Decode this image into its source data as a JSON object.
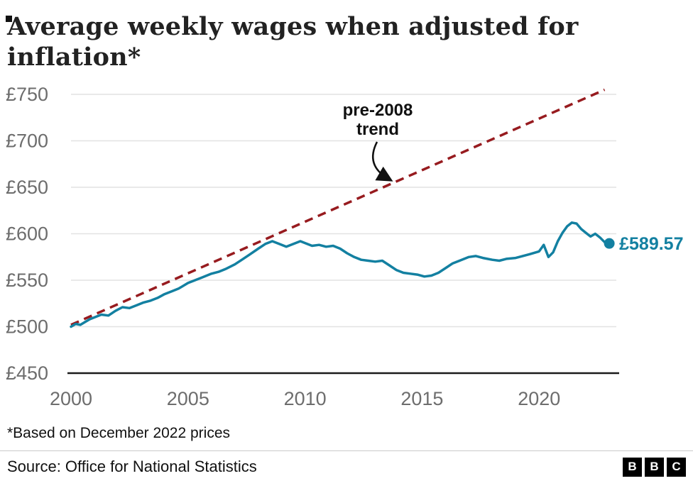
{
  "title": "Average weekly wages when adjusted for inflation*",
  "footnote": "*Based on December 2022 prices",
  "source": "Source: Office for National Statistics",
  "logo": [
    "B",
    "B",
    "C"
  ],
  "annotation": {
    "line1": "pre-2008",
    "line2": "trend"
  },
  "colors": {
    "series": "#1380A1",
    "trend": "#971b1f",
    "grid": "#e2e2e2",
    "axis": "#1a1a1a",
    "tick_text": "#6d6d6d",
    "annotation": "#111111"
  },
  "chart_data": {
    "type": "line",
    "title": "Average weekly wages when adjusted for inflation*",
    "xlabel": "",
    "ylabel": "",
    "x_range": [
      2000,
      2023.3
    ],
    "y_range": [
      450,
      750
    ],
    "yticks": [
      450,
      500,
      550,
      600,
      650,
      700,
      750
    ],
    "ytick_labels": [
      "£450",
      "£500",
      "£550",
      "£600",
      "£650",
      "£700",
      "£750"
    ],
    "xticks": [
      2000,
      2005,
      2010,
      2015,
      2020
    ],
    "xtick_labels": [
      "2000",
      "2005",
      "2010",
      "2015",
      "2020"
    ],
    "grid": true,
    "legend": false,
    "series": [
      {
        "name": "average-weekly-wages",
        "color": "#1380A1",
        "points": [
          [
            2000,
            500
          ],
          [
            2000.2,
            503
          ],
          [
            2000.4,
            502
          ],
          [
            2000.6,
            505
          ],
          [
            2000.8,
            508
          ],
          [
            2001,
            510
          ],
          [
            2001.3,
            513
          ],
          [
            2001.6,
            512
          ],
          [
            2001.9,
            517
          ],
          [
            2002.2,
            521
          ],
          [
            2002.5,
            520
          ],
          [
            2002.8,
            523
          ],
          [
            2003.1,
            526
          ],
          [
            2003.4,
            528
          ],
          [
            2003.7,
            531
          ],
          [
            2004,
            535
          ],
          [
            2004.3,
            538
          ],
          [
            2004.6,
            541
          ],
          [
            2005,
            547
          ],
          [
            2005.3,
            550
          ],
          [
            2005.6,
            553
          ],
          [
            2006,
            557
          ],
          [
            2006.3,
            559
          ],
          [
            2006.6,
            562
          ],
          [
            2007,
            567
          ],
          [
            2007.3,
            572
          ],
          [
            2007.6,
            577
          ],
          [
            2008,
            584
          ],
          [
            2008.3,
            589
          ],
          [
            2008.6,
            592
          ],
          [
            2008.9,
            589
          ],
          [
            2009.2,
            586
          ],
          [
            2009.5,
            589
          ],
          [
            2009.8,
            592
          ],
          [
            2010,
            590
          ],
          [
            2010.3,
            587
          ],
          [
            2010.6,
            588
          ],
          [
            2010.9,
            586
          ],
          [
            2011.2,
            587
          ],
          [
            2011.5,
            584
          ],
          [
            2011.8,
            579
          ],
          [
            2012.1,
            575
          ],
          [
            2012.4,
            572
          ],
          [
            2012.7,
            571
          ],
          [
            2013,
            570
          ],
          [
            2013.3,
            571
          ],
          [
            2013.6,
            566
          ],
          [
            2013.9,
            561
          ],
          [
            2014.2,
            558
          ],
          [
            2014.5,
            557
          ],
          [
            2014.8,
            556
          ],
          [
            2015.1,
            554
          ],
          [
            2015.4,
            555
          ],
          [
            2015.7,
            558
          ],
          [
            2016,
            563
          ],
          [
            2016.3,
            568
          ],
          [
            2016.6,
            571
          ],
          [
            2017,
            575
          ],
          [
            2017.3,
            576
          ],
          [
            2017.6,
            574
          ],
          [
            2018,
            572
          ],
          [
            2018.3,
            571
          ],
          [
            2018.6,
            573
          ],
          [
            2019,
            574
          ],
          [
            2019.3,
            576
          ],
          [
            2019.6,
            578
          ],
          [
            2020,
            581
          ],
          [
            2020.2,
            588
          ],
          [
            2020.4,
            575
          ],
          [
            2020.6,
            580
          ],
          [
            2020.8,
            592
          ],
          [
            2021,
            601
          ],
          [
            2021.2,
            608
          ],
          [
            2021.4,
            612
          ],
          [
            2021.6,
            611
          ],
          [
            2021.8,
            605
          ],
          [
            2022,
            601
          ],
          [
            2022.2,
            597
          ],
          [
            2022.4,
            600
          ],
          [
            2022.6,
            596
          ],
          [
            2022.8,
            591
          ],
          [
            2023,
            589.57
          ]
        ]
      },
      {
        "name": "pre-2008 trend",
        "color": "#971b1f",
        "style": "dashed",
        "points": [
          [
            2000,
            502
          ],
          [
            2022.8,
            755
          ]
        ]
      }
    ],
    "end_point": {
      "x": 2023,
      "y": 589.57,
      "label": "£589.57"
    }
  }
}
